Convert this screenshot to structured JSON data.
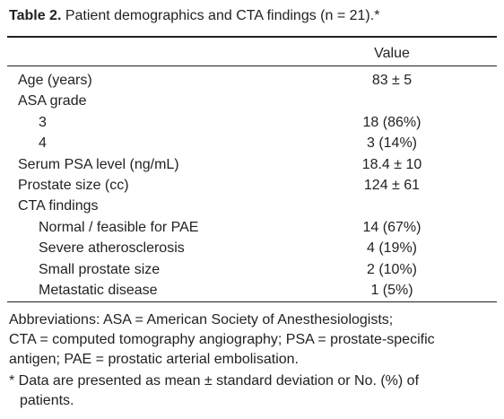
{
  "title": {
    "label": "Table 2.",
    "text": "Patient demographics and CTA findings (n = 21).*"
  },
  "table": {
    "header": {
      "value": "Value"
    },
    "rows": [
      {
        "label": "Age (years)",
        "value": "83 ± 5"
      },
      {
        "label": "ASA grade",
        "items": [
          {
            "label": "3",
            "value": "18 (86%)"
          },
          {
            "label": "4",
            "value": "3 (14%)"
          }
        ]
      },
      {
        "label": "Serum PSA level (ng/mL)",
        "value": "18.4 ± 10"
      },
      {
        "label": "Prostate size (cc)",
        "value": "124 ± 61"
      },
      {
        "label": "CTA findings",
        "items": [
          {
            "label": "Normal / feasible for PAE",
            "value": "14 (67%)"
          },
          {
            "label": "Severe atherosclerosis",
            "value": "4 (19%)"
          },
          {
            "label": "Small prostate size",
            "value": "2 (10%)"
          },
          {
            "label": "Metastatic disease",
            "value": "1 (5%)"
          }
        ]
      }
    ]
  },
  "footnotes": {
    "abbreviations": [
      "Abbreviations: ASA = American Society of Anesthesiologists;",
      "CTA = computed tomography angiography; PSA = prostate-specific",
      "antigen; PAE = prostatic arterial embolisation."
    ],
    "note": [
      "* Data are presented as mean ± standard deviation or No. (%) of",
      "patients."
    ]
  }
}
